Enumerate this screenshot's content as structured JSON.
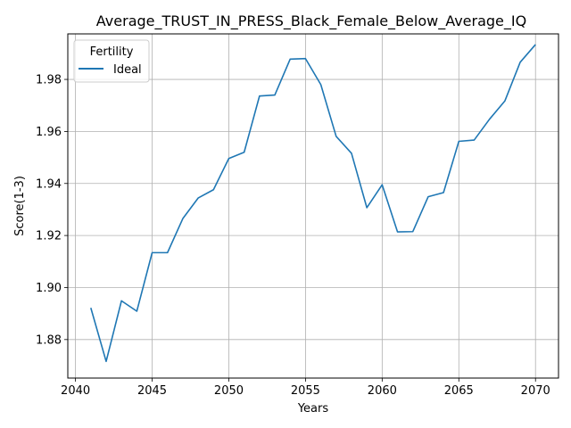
{
  "chart_data": {
    "type": "line",
    "title": "Average_TRUST_IN_PRESS_Black_Female_Below_Average_IQ",
    "xlabel": "Years",
    "ylabel": "Score(1-3)",
    "xlim": [
      2039.5,
      2071.5
    ],
    "ylim": [
      1.8652,
      1.9975
    ],
    "x_ticks": [
      2040,
      2045,
      2050,
      2055,
      2060,
      2065,
      2070
    ],
    "y_ticks": [
      1.88,
      1.9,
      1.92,
      1.94,
      1.96,
      1.98
    ],
    "grid": true,
    "legend": {
      "title": "Fertility",
      "position": "top-left"
    },
    "x": [
      2041,
      2042,
      2043,
      2044,
      2045,
      2046,
      2047,
      2048,
      2049,
      2050,
      2051,
      2052,
      2053,
      2054,
      2055,
      2056,
      2057,
      2058,
      2059,
      2060,
      2061,
      2062,
      2063,
      2064,
      2065,
      2066,
      2067,
      2068,
      2069,
      2070
    ],
    "series": [
      {
        "name": "Ideal",
        "color": "#1f77b4",
        "values": [
          1.8922,
          1.8716,
          1.8949,
          1.8909,
          1.9134,
          1.9134,
          1.9265,
          1.9344,
          1.9376,
          1.9496,
          1.952,
          1.9736,
          1.974,
          1.9878,
          1.988,
          1.978,
          1.9581,
          1.9516,
          1.9307,
          1.9395,
          1.9214,
          1.9215,
          1.9349,
          1.9365,
          1.9562,
          1.9567,
          1.9647,
          1.9717,
          1.9866,
          1.9934
        ]
      }
    ]
  }
}
